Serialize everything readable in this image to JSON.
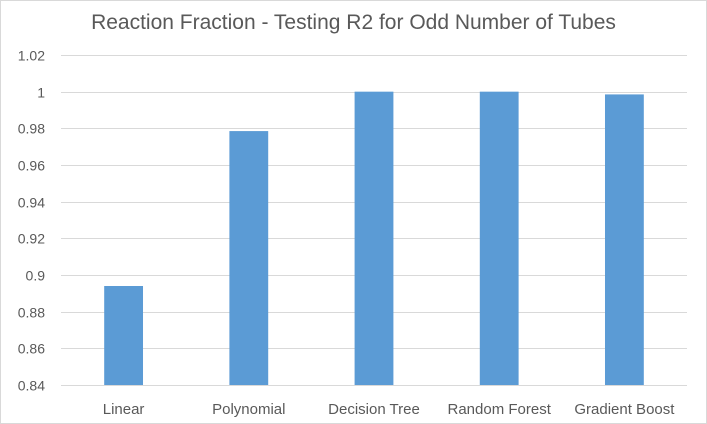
{
  "chart_data": {
    "type": "bar",
    "title": "Reaction Fraction - Testing R2 for Odd Number of Tubes",
    "xlabel": "",
    "ylabel": "",
    "categories": [
      "Linear",
      "Polynomial",
      "Decision Tree",
      "Random Forest",
      "Gradient Boost"
    ],
    "values": [
      0.894,
      0.9785,
      1.0,
      1.0,
      0.9985
    ],
    "ylim": [
      0.84,
      1.02
    ],
    "yticks": [
      "0.84",
      "0.86",
      "0.88",
      "0.9",
      "0.92",
      "0.94",
      "0.96",
      "0.98",
      "1",
      "1.02"
    ],
    "grid": true,
    "legend": "none",
    "bar_color": "#5b9bd5"
  }
}
